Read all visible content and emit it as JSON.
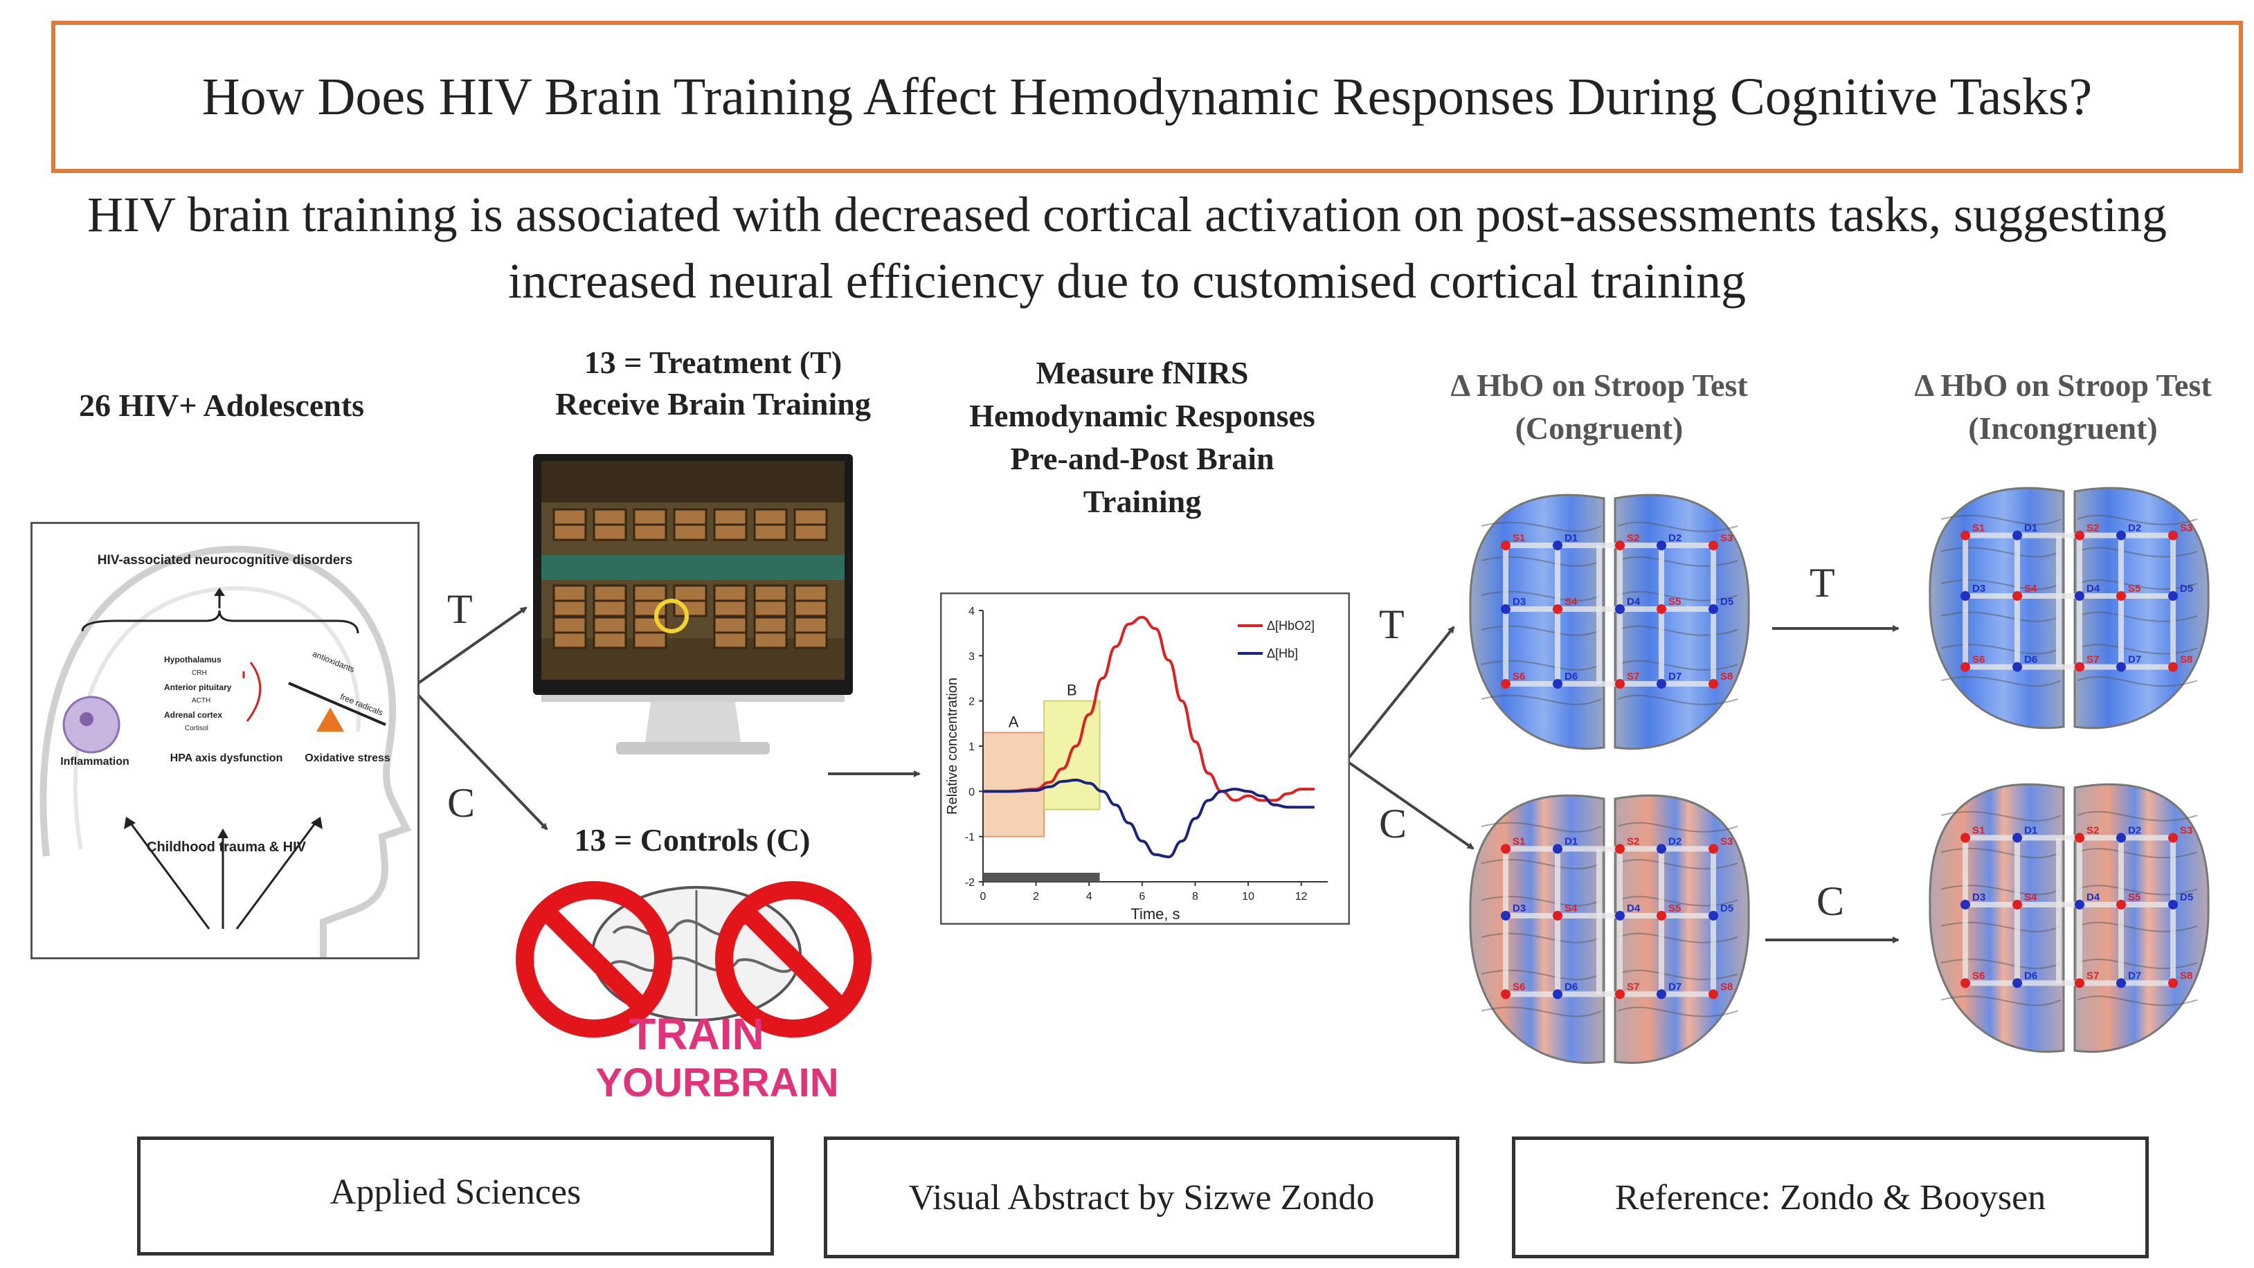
{
  "header": {
    "title": "How Does HIV Brain Training Affect Hemodynamic Responses During Cognitive Tasks?",
    "subtitle": "HIV brain  training is associated with decreased cortical activation on post-assessments tasks, suggesting increased neural efficiency due to customised cortical training"
  },
  "flow": {
    "participants": "26 HIV+  Adolescents",
    "treatment_line1": "13 = Treatment (T)",
    "treatment_line2": "Receive Brain Training",
    "controls": "13 = Controls (C)",
    "measure": "Measure fNIRS Hemodynamic Responses Pre-and-Post Brain Training",
    "congruent_title": "Δ HbO on Stroop Test (Congruent)",
    "incongruent_title": "Δ HbO on Stroop Test (Incongruent)",
    "branch_t": "T",
    "branch_c": "C"
  },
  "head_diagram": {
    "top": "HIV-associated neurocognitive disorders",
    "hpa": [
      "Hypothalamus",
      "CRH",
      "Anterior pituitary",
      "ACTH",
      "Adrenal cortex",
      "Cortisol"
    ],
    "left": "Inflammation",
    "middle": "HPA axis dysfunction",
    "right": "Oxidative stress",
    "scale_left": "antioxidants",
    "scale_right": "free radicals",
    "bottom": "Childhood trauma & HIV"
  },
  "train_image": {
    "text_line1": "TRAIN",
    "text_line2": "YOURBRAIN"
  },
  "chart_data": {
    "type": "line",
    "xlabel": "Time, s",
    "ylabel": "Relative concentration",
    "xlim": [
      0,
      13
    ],
    "ylim": [
      -2,
      4
    ],
    "xticks": [
      0,
      2,
      4,
      6,
      8,
      10,
      12
    ],
    "yticks": [
      -2,
      -1,
      0,
      1,
      2,
      3,
      4
    ],
    "regions": [
      {
        "label": "A",
        "x": [
          0,
          2.3
        ],
        "y": [
          -1,
          1.3
        ]
      },
      {
        "label": "B",
        "x": [
          2.3,
          4.4
        ],
        "y": [
          -0.4,
          2
        ]
      }
    ],
    "series": [
      {
        "name": "Δ[HbO2]",
        "color": "#e02020",
        "x": [
          0,
          1,
          2,
          2.5,
          3,
          3.5,
          4,
          4.5,
          5,
          5.5,
          6,
          6.5,
          7,
          7.5,
          8,
          8.5,
          9,
          9.5,
          10,
          10.5,
          11,
          11.5,
          12,
          12.5
        ],
        "y": [
          0,
          0,
          0.05,
          0.2,
          0.5,
          1.0,
          1.7,
          2.5,
          3.2,
          3.7,
          3.85,
          3.6,
          2.9,
          2.0,
          1.1,
          0.4,
          0.0,
          -0.2,
          -0.1,
          -0.2,
          -0.2,
          -0.05,
          0.05,
          0.05
        ]
      },
      {
        "name": "Δ[Hb]",
        "color": "#1a237e",
        "x": [
          0,
          1,
          2,
          2.5,
          3,
          3.5,
          4,
          4.5,
          5,
          5.5,
          6,
          6.5,
          7,
          7.5,
          8,
          8.5,
          9,
          9.5,
          10,
          10.5,
          11,
          11.5,
          12,
          12.5
        ],
        "y": [
          0,
          0,
          0.02,
          0.1,
          0.22,
          0.25,
          0.18,
          0.0,
          -0.3,
          -0.7,
          -1.1,
          -1.4,
          -1.45,
          -1.1,
          -0.6,
          -0.2,
          0.0,
          0.05,
          0.0,
          -0.1,
          -0.3,
          -0.35,
          -0.35,
          -0.35
        ]
      }
    ]
  },
  "brain_maps": {
    "sources": [
      "S1",
      "S2",
      "S3",
      "S4",
      "S5",
      "S6",
      "S7",
      "S8"
    ],
    "detectors": [
      "D1",
      "D2",
      "D3",
      "D4",
      "D5",
      "D6",
      "D7"
    ]
  },
  "footer": {
    "left": "Applied Sciences",
    "center": "Visual Abstract by Sizwe Zondo",
    "right": "Reference: Zondo & Booysen"
  },
  "colors": {
    "title_border": "#e07b39",
    "hbo": "#e02020",
    "hb": "#1a237e",
    "stop_sign": "#e2151b",
    "train_text": "#e0337a"
  }
}
